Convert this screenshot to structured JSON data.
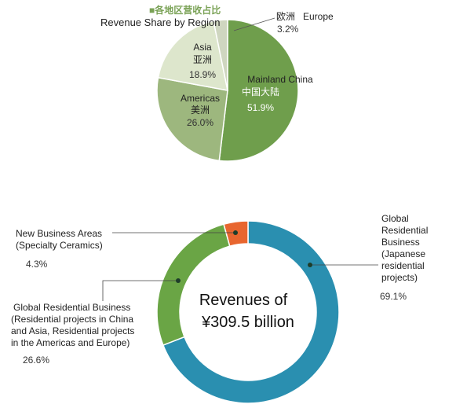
{
  "pie_chart": {
    "title_cn": "■各地区营收占比",
    "title_en": "Revenue Share by Region"
  },
  "donut_chart": {
    "center_line1": "Revenues of",
    "center_line2": "¥309.5 billion"
  },
  "chart_data": [
    {
      "type": "pie",
      "title": "Revenue Share by Region",
      "categories": [
        "Mainland China",
        "Americas",
        "Asia",
        "Europe"
      ],
      "categories_cn": [
        "中国大陆",
        "美洲",
        "亚洲",
        "欧洲"
      ],
      "values": [
        51.9,
        26.0,
        18.9,
        3.2
      ],
      "value_labels": [
        "51.9%",
        "26.0%",
        "18.9%",
        "3.2%"
      ],
      "colors": [
        "#6f9e4c",
        "#9db77e",
        "#dde6cc",
        "#cfd6c0"
      ]
    },
    {
      "type": "pie",
      "title": "Revenues of ¥309.5 billion",
      "categories": [
        "Global Residential Business (Japanese residential projects)",
        "Global Residential Business (Residential projects in China and Asia, Residential projects in the Americas and Europe)",
        "New Business Areas (Specialty Ceramics)"
      ],
      "values": [
        69.1,
        26.6,
        4.3
      ],
      "value_labels": [
        "69.1%",
        "26.6%",
        "4.3%"
      ],
      "label_lines": [
        [
          "Global",
          "Residential",
          "Business",
          "(Japanese",
          "residential",
          "projects)"
        ],
        [
          "Global Residential Business",
          "(Residential projects in China",
          "and Asia, Residential projects",
          "in the Americas and Europe)"
        ],
        [
          "New Business Areas",
          "(Specialty Ceramics)"
        ]
      ],
      "colors": [
        "#2a8fb0",
        "#6aa545",
        "#e8662f"
      ]
    }
  ]
}
